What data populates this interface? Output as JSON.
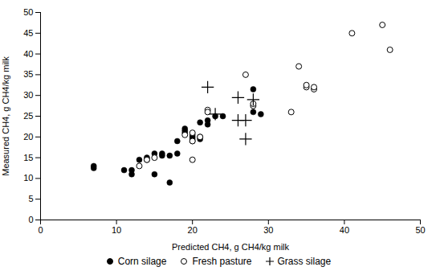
{
  "chart_data": {
    "type": "scatter",
    "xlabel": "Predicted CH4, g CH4/kg milk",
    "ylabel": "Measured CH4, g CH4/kg milk",
    "xlim": [
      0,
      50
    ],
    "ylim": [
      0,
      50
    ],
    "xticks": [
      0,
      10,
      20,
      30,
      40,
      50
    ],
    "yticks": [
      0,
      5,
      10,
      15,
      20,
      25,
      30,
      35,
      40,
      45,
      50
    ],
    "grid": false,
    "legend": "bottom",
    "series": [
      {
        "name": "Corn silage",
        "color": "#000000",
        "marker": "circle",
        "x": [
          7,
          7,
          11,
          12,
          12,
          13,
          14,
          14,
          15,
          15,
          16,
          16,
          17,
          17,
          18,
          18,
          19,
          19,
          19,
          20,
          20,
          20,
          20,
          21,
          21,
          21,
          22,
          22,
          23,
          24,
          28,
          28,
          29
        ],
        "values": [
          13,
          12.5,
          12,
          11,
          12,
          14.5,
          15,
          14.5,
          11,
          16,
          15.5,
          16,
          9,
          15.5,
          16,
          19,
          22,
          21,
          21.5,
          20,
          19.5,
          19,
          20.5,
          23.5,
          19.5,
          20,
          24,
          23,
          25,
          25,
          31.5,
          26,
          25.5
        ]
      },
      {
        "name": "Fresh pasture",
        "color": "#000000",
        "marker": "hollow",
        "x": [
          13,
          14,
          15,
          19,
          20,
          20,
          20,
          21,
          22,
          22,
          27,
          28,
          28,
          33,
          34,
          35,
          35,
          36,
          36,
          41,
          45,
          46
        ],
        "values": [
          13,
          14.5,
          15,
          20.5,
          19,
          21,
          14.5,
          20,
          26.5,
          26,
          35,
          27.5,
          28,
          26,
          37,
          32,
          32.5,
          31.5,
          32,
          45,
          47,
          41
        ]
      },
      {
        "name": "Grass silage",
        "color": "#000000",
        "marker": "plus",
        "x": [
          22,
          23,
          26,
          26,
          27,
          27,
          28
        ],
        "values": [
          32,
          25.5,
          24,
          29.5,
          19.5,
          24,
          29
        ]
      }
    ]
  }
}
